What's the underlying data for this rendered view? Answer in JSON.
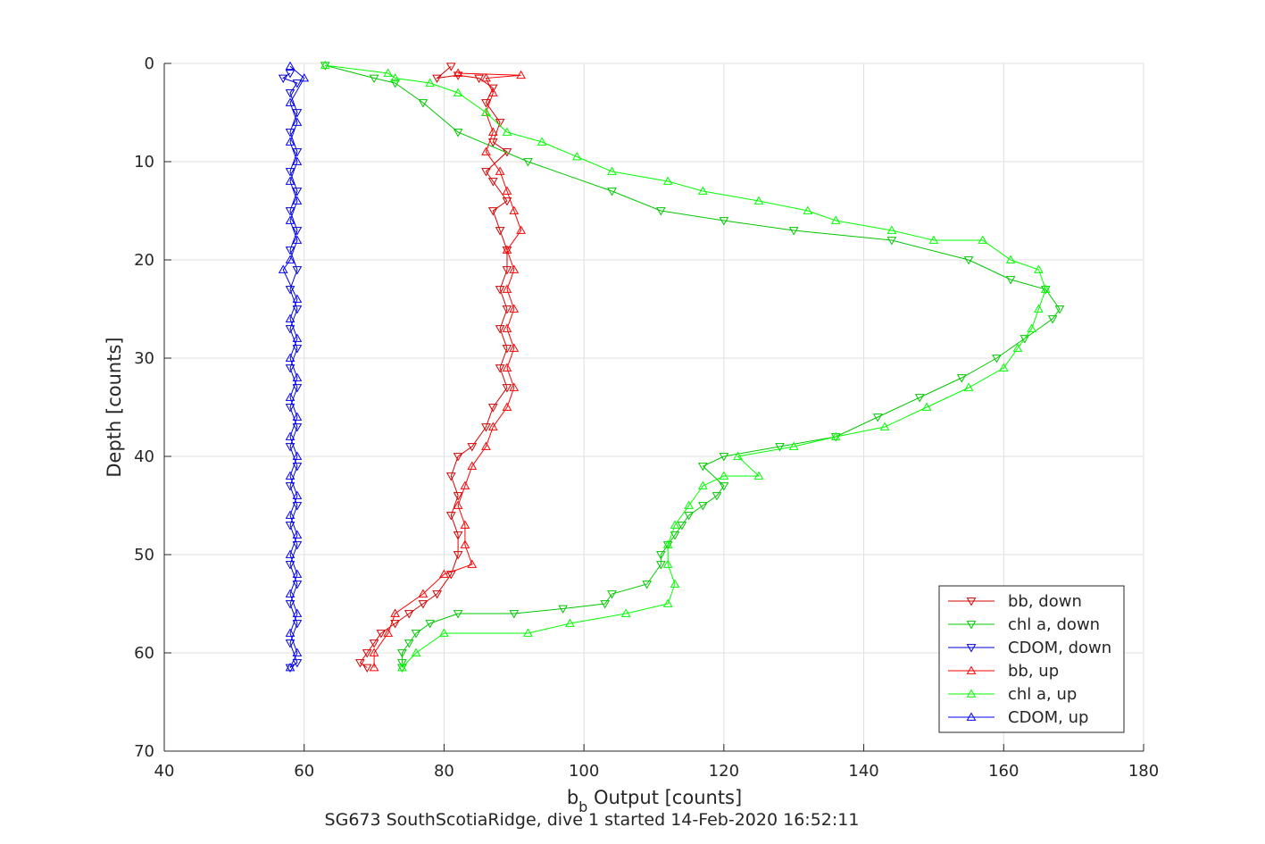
{
  "figure": {
    "subtitle": "SG673 SouthScotiaRidge, dive 1 started 14-Feb-2020 16:52:11"
  },
  "chart_data": {
    "type": "line",
    "title": "",
    "xlabel_main": "b",
    "xlabel_sub": "b",
    "xlabel_rest": " Output [counts]",
    "ylabel": "Depth [counts]",
    "xlim": [
      40,
      180
    ],
    "ylim": [
      0,
      70
    ],
    "y_reversed": true,
    "grid": true,
    "legend_position": "bottom-right",
    "xticks": [
      40,
      60,
      80,
      100,
      120,
      140,
      160,
      180
    ],
    "yticks": [
      0,
      10,
      20,
      30,
      40,
      50,
      60,
      70
    ],
    "series": [
      {
        "name": "bb, down",
        "color": "#d40000",
        "marker": "triangle-down",
        "points": [
          [
            81,
            0.3
          ],
          [
            79,
            1.5
          ],
          [
            82,
            1.2
          ],
          [
            85,
            1.5
          ],
          [
            87,
            2.5
          ],
          [
            86,
            4
          ],
          [
            88,
            6
          ],
          [
            87,
            8
          ],
          [
            89,
            9
          ],
          [
            86,
            11
          ],
          [
            87,
            12
          ],
          [
            89,
            14
          ],
          [
            87,
            15
          ],
          [
            88,
            17
          ],
          [
            89,
            19
          ],
          [
            89,
            21
          ],
          [
            88,
            23
          ],
          [
            89,
            25
          ],
          [
            88,
            27
          ],
          [
            89,
            29
          ],
          [
            88,
            31
          ],
          [
            89,
            33
          ],
          [
            87,
            35
          ],
          [
            86,
            37
          ],
          [
            84,
            39
          ],
          [
            82,
            40
          ],
          [
            81,
            42
          ],
          [
            82,
            44
          ],
          [
            81,
            46
          ],
          [
            82,
            48
          ],
          [
            82,
            50
          ],
          [
            81,
            52
          ],
          [
            79,
            54
          ],
          [
            77,
            55
          ],
          [
            75,
            56
          ],
          [
            73,
            57
          ],
          [
            71,
            58
          ],
          [
            70,
            59
          ],
          [
            69,
            60
          ],
          [
            68,
            61
          ],
          [
            69,
            61.5
          ]
        ]
      },
      {
        "name": "chl a, down",
        "color": "#00c800",
        "marker": "triangle-down",
        "points": [
          [
            63,
            0.2
          ],
          [
            70,
            1.5
          ],
          [
            73,
            2
          ],
          [
            77,
            4
          ],
          [
            82,
            7
          ],
          [
            92,
            10
          ],
          [
            104,
            13
          ],
          [
            111,
            15
          ],
          [
            120,
            16
          ],
          [
            130,
            17
          ],
          [
            144,
            18
          ],
          [
            155,
            20
          ],
          [
            161,
            22
          ],
          [
            166,
            23
          ],
          [
            168,
            25
          ],
          [
            167,
            26
          ],
          [
            163,
            28
          ],
          [
            159,
            30
          ],
          [
            154,
            32
          ],
          [
            148,
            34
          ],
          [
            142,
            36
          ],
          [
            136,
            38
          ],
          [
            128,
            39
          ],
          [
            120,
            40
          ],
          [
            117,
            41
          ],
          [
            120,
            43
          ],
          [
            119,
            44
          ],
          [
            117,
            45
          ],
          [
            115,
            46
          ],
          [
            114,
            47
          ],
          [
            113,
            48
          ],
          [
            112,
            49
          ],
          [
            111,
            50
          ],
          [
            111,
            51
          ],
          [
            109,
            53
          ],
          [
            104,
            54
          ],
          [
            103,
            55
          ],
          [
            97,
            55.5
          ],
          [
            90,
            56
          ],
          [
            82,
            56
          ],
          [
            78,
            57
          ],
          [
            76,
            58
          ],
          [
            75,
            59
          ],
          [
            74,
            60
          ],
          [
            74,
            61
          ],
          [
            74,
            61.5
          ]
        ]
      },
      {
        "name": "CDOM, down",
        "color": "#0000d8",
        "marker": "triangle-down",
        "points": [
          [
            58,
            1
          ],
          [
            57,
            1.5
          ],
          [
            59,
            2
          ],
          [
            58,
            3
          ],
          [
            59,
            5
          ],
          [
            58,
            7
          ],
          [
            59,
            9
          ],
          [
            58,
            11
          ],
          [
            59,
            13
          ],
          [
            58,
            15
          ],
          [
            59,
            17
          ],
          [
            58,
            19
          ],
          [
            59,
            21
          ],
          [
            58,
            23
          ],
          [
            59,
            25
          ],
          [
            58,
            27
          ],
          [
            59,
            29
          ],
          [
            58,
            31
          ],
          [
            59,
            33
          ],
          [
            58,
            35
          ],
          [
            59,
            37
          ],
          [
            58,
            39
          ],
          [
            59,
            41
          ],
          [
            58,
            43
          ],
          [
            59,
            45
          ],
          [
            58,
            47
          ],
          [
            59,
            49
          ],
          [
            58,
            51
          ],
          [
            59,
            53
          ],
          [
            58,
            55
          ],
          [
            59,
            57
          ],
          [
            58,
            59
          ],
          [
            59,
            61
          ],
          [
            58,
            61.5
          ]
        ]
      },
      {
        "name": "bb, up",
        "color": "#ff0000",
        "marker": "triangle-up",
        "points": [
          [
            70,
            61.5
          ],
          [
            70,
            60
          ],
          [
            72,
            58
          ],
          [
            73,
            56
          ],
          [
            77,
            54
          ],
          [
            80,
            52
          ],
          [
            84,
            51
          ],
          [
            83,
            49
          ],
          [
            83,
            47
          ],
          [
            82,
            45
          ],
          [
            83,
            43
          ],
          [
            84,
            41
          ],
          [
            86,
            39
          ],
          [
            87,
            37
          ],
          [
            89,
            35
          ],
          [
            90,
            33
          ],
          [
            89,
            31
          ],
          [
            90,
            29
          ],
          [
            89,
            27
          ],
          [
            90,
            25
          ],
          [
            89,
            23
          ],
          [
            90,
            21
          ],
          [
            89,
            19
          ],
          [
            91,
            17
          ],
          [
            90,
            15
          ],
          [
            89,
            13
          ],
          [
            88,
            11
          ],
          [
            86,
            9
          ],
          [
            87,
            7
          ],
          [
            86,
            5
          ],
          [
            87,
            3
          ],
          [
            86,
            1.5
          ],
          [
            91,
            1.2
          ],
          [
            82,
            1
          ]
        ]
      },
      {
        "name": "chl a, up",
        "color": "#00ff00",
        "marker": "triangle-up",
        "points": [
          [
            74,
            61.5
          ],
          [
            76,
            60
          ],
          [
            80,
            58
          ],
          [
            92,
            58
          ],
          [
            98,
            57
          ],
          [
            106,
            56
          ],
          [
            112,
            55
          ],
          [
            113,
            53
          ],
          [
            112,
            51
          ],
          [
            112,
            49
          ],
          [
            113,
            47
          ],
          [
            115,
            45
          ],
          [
            117,
            43
          ],
          [
            120,
            42
          ],
          [
            125,
            42
          ],
          [
            122,
            40
          ],
          [
            130,
            39
          ],
          [
            136,
            38
          ],
          [
            143,
            37
          ],
          [
            149,
            35
          ],
          [
            155,
            33
          ],
          [
            160,
            31
          ],
          [
            162,
            29
          ],
          [
            164,
            27
          ],
          [
            165,
            25
          ],
          [
            166,
            23
          ],
          [
            165,
            21
          ],
          [
            161,
            20
          ],
          [
            157,
            18
          ],
          [
            150,
            18
          ],
          [
            144,
            17
          ],
          [
            136,
            16
          ],
          [
            132,
            15
          ],
          [
            125,
            14
          ],
          [
            117,
            13
          ],
          [
            112,
            12
          ],
          [
            104,
            11
          ],
          [
            99,
            9.5
          ],
          [
            94,
            8
          ],
          [
            89,
            7
          ],
          [
            86,
            5
          ],
          [
            82,
            3
          ],
          [
            78,
            2
          ],
          [
            73,
            1.5
          ],
          [
            72,
            1
          ],
          [
            63,
            0.2
          ]
        ]
      },
      {
        "name": "CDOM, up",
        "color": "#0000ff",
        "marker": "triangle-up",
        "points": [
          [
            58,
            61.5
          ],
          [
            59,
            60
          ],
          [
            58,
            58
          ],
          [
            59,
            56
          ],
          [
            58,
            54
          ],
          [
            59,
            52
          ],
          [
            58,
            50
          ],
          [
            59,
            48
          ],
          [
            58,
            46
          ],
          [
            59,
            44
          ],
          [
            58,
            42
          ],
          [
            59,
            40
          ],
          [
            58,
            38
          ],
          [
            59,
            36
          ],
          [
            58,
            34
          ],
          [
            59,
            32
          ],
          [
            58,
            30
          ],
          [
            59,
            28
          ],
          [
            58,
            26
          ],
          [
            59,
            24
          ],
          [
            57,
            21
          ],
          [
            58,
            20
          ],
          [
            59,
            18
          ],
          [
            58,
            16
          ],
          [
            59,
            14
          ],
          [
            58,
            12
          ],
          [
            59,
            10
          ],
          [
            58,
            8
          ],
          [
            59,
            6
          ],
          [
            58,
            4
          ],
          [
            60,
            1.5
          ],
          [
            58,
            0.3
          ]
        ]
      }
    ]
  }
}
